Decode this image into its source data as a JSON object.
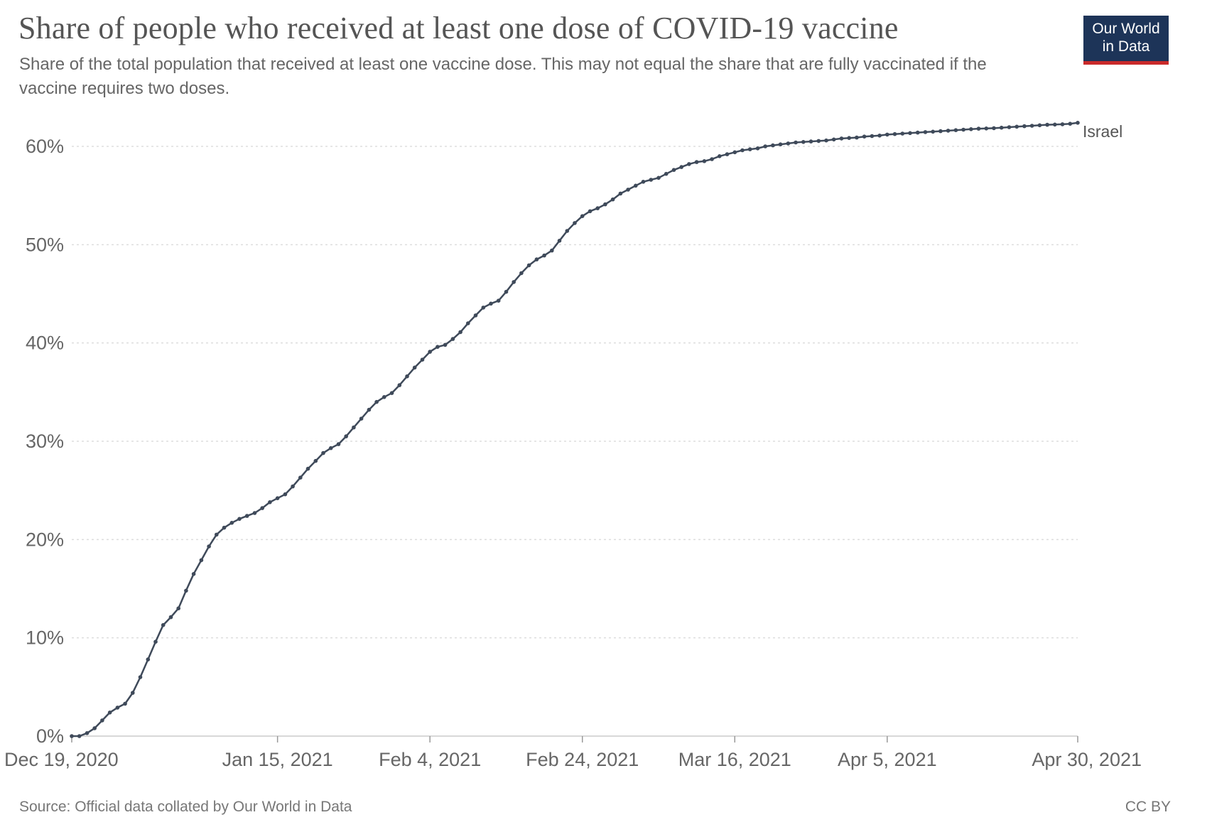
{
  "header": {
    "title": "Share of people who received at least one dose of COVID-19 vaccine",
    "subtitle": "Share of the total population that received at least one vaccine dose. This may not equal the share that are fully vaccinated if the vaccine requires two doses."
  },
  "logo": {
    "line1": "Our World",
    "line2": "in Data"
  },
  "footer": {
    "source_prefix": "Source: ",
    "source_name": "Official data collated by Our World in Data",
    "license": "CC BY"
  },
  "colors": {
    "line": "#3f4a5a",
    "grid": "#dddddd",
    "logo_bg": "#1d3458",
    "logo_accent": "#c92a2a"
  },
  "chart_data": {
    "type": "line",
    "y_unit": "%",
    "ylim": [
      0,
      60
    ],
    "y_ticks": [
      0,
      10,
      20,
      30,
      40,
      50,
      60
    ],
    "y_tick_labels": [
      "0%",
      "10%",
      "20%",
      "30%",
      "40%",
      "50%",
      "60%"
    ],
    "x_range": [
      "2020-12-19",
      "2021-04-30"
    ],
    "x_ticks": [
      "2020-12-19",
      "2021-01-15",
      "2021-02-04",
      "2021-02-24",
      "2021-03-16",
      "2021-04-05",
      "2021-04-30"
    ],
    "x_tick_labels": [
      "Dec 19, 2020",
      "Jan 15, 2021",
      "Feb 4, 2021",
      "Feb 24, 2021",
      "Mar 16, 2021",
      "Apr 5, 2021",
      "Apr 30, 2021"
    ],
    "grid": "horizontal dotted",
    "legend": "end-of-line label",
    "series": [
      {
        "name": "Israel",
        "points": [
          [
            "2020-12-19",
            0.0
          ],
          [
            "2020-12-20",
            0.0
          ],
          [
            "2020-12-21",
            0.3
          ],
          [
            "2020-12-22",
            0.8
          ],
          [
            "2020-12-23",
            1.6
          ],
          [
            "2020-12-24",
            2.4
          ],
          [
            "2020-12-25",
            2.9
          ],
          [
            "2020-12-26",
            3.3
          ],
          [
            "2020-12-27",
            4.4
          ],
          [
            "2020-12-28",
            6.0
          ],
          [
            "2020-12-29",
            7.8
          ],
          [
            "2020-12-30",
            9.6
          ],
          [
            "2020-12-31",
            11.3
          ],
          [
            "2021-01-01",
            12.1
          ],
          [
            "2021-01-02",
            13.0
          ],
          [
            "2021-01-03",
            14.8
          ],
          [
            "2021-01-04",
            16.5
          ],
          [
            "2021-01-05",
            17.9
          ],
          [
            "2021-01-06",
            19.3
          ],
          [
            "2021-01-07",
            20.5
          ],
          [
            "2021-01-08",
            21.2
          ],
          [
            "2021-01-09",
            21.7
          ],
          [
            "2021-01-10",
            22.1
          ],
          [
            "2021-01-11",
            22.4
          ],
          [
            "2021-01-12",
            22.7
          ],
          [
            "2021-01-13",
            23.2
          ],
          [
            "2021-01-14",
            23.8
          ],
          [
            "2021-01-15",
            24.2
          ],
          [
            "2021-01-16",
            24.6
          ],
          [
            "2021-01-17",
            25.4
          ],
          [
            "2021-01-18",
            26.3
          ],
          [
            "2021-01-19",
            27.2
          ],
          [
            "2021-01-20",
            28.0
          ],
          [
            "2021-01-21",
            28.8
          ],
          [
            "2021-01-22",
            29.3
          ],
          [
            "2021-01-23",
            29.7
          ],
          [
            "2021-01-24",
            30.5
          ],
          [
            "2021-01-25",
            31.4
          ],
          [
            "2021-01-26",
            32.3
          ],
          [
            "2021-01-27",
            33.2
          ],
          [
            "2021-01-28",
            34.0
          ],
          [
            "2021-01-29",
            34.5
          ],
          [
            "2021-01-30",
            34.9
          ],
          [
            "2021-01-31",
            35.7
          ],
          [
            "2021-02-01",
            36.6
          ],
          [
            "2021-02-02",
            37.5
          ],
          [
            "2021-02-03",
            38.3
          ],
          [
            "2021-02-04",
            39.1
          ],
          [
            "2021-02-05",
            39.6
          ],
          [
            "2021-02-06",
            39.8
          ],
          [
            "2021-02-07",
            40.4
          ],
          [
            "2021-02-08",
            41.1
          ],
          [
            "2021-02-09",
            42.0
          ],
          [
            "2021-02-10",
            42.8
          ],
          [
            "2021-02-11",
            43.6
          ],
          [
            "2021-02-12",
            44.0
          ],
          [
            "2021-02-13",
            44.3
          ],
          [
            "2021-02-14",
            45.2
          ],
          [
            "2021-02-15",
            46.2
          ],
          [
            "2021-02-16",
            47.1
          ],
          [
            "2021-02-17",
            47.9
          ],
          [
            "2021-02-18",
            48.5
          ],
          [
            "2021-02-19",
            48.9
          ],
          [
            "2021-02-20",
            49.4
          ],
          [
            "2021-02-21",
            50.4
          ],
          [
            "2021-02-22",
            51.4
          ],
          [
            "2021-02-23",
            52.2
          ],
          [
            "2021-02-24",
            52.9
          ],
          [
            "2021-02-25",
            53.4
          ],
          [
            "2021-02-26",
            53.7
          ],
          [
            "2021-02-27",
            54.1
          ],
          [
            "2021-02-28",
            54.6
          ],
          [
            "2021-03-01",
            55.2
          ],
          [
            "2021-03-02",
            55.6
          ],
          [
            "2021-03-03",
            56.0
          ],
          [
            "2021-03-04",
            56.4
          ],
          [
            "2021-03-05",
            56.6
          ],
          [
            "2021-03-06",
            56.8
          ],
          [
            "2021-03-07",
            57.2
          ],
          [
            "2021-03-08",
            57.6
          ],
          [
            "2021-03-09",
            57.9
          ],
          [
            "2021-03-10",
            58.2
          ],
          [
            "2021-03-11",
            58.4
          ],
          [
            "2021-03-12",
            58.5
          ],
          [
            "2021-03-13",
            58.7
          ],
          [
            "2021-03-14",
            59.0
          ],
          [
            "2021-03-15",
            59.2
          ],
          [
            "2021-03-16",
            59.4
          ],
          [
            "2021-03-17",
            59.6
          ],
          [
            "2021-03-18",
            59.7
          ],
          [
            "2021-03-19",
            59.8
          ],
          [
            "2021-03-20",
            60.0
          ],
          [
            "2021-03-21",
            60.1
          ],
          [
            "2021-03-22",
            60.2
          ],
          [
            "2021-03-23",
            60.3
          ],
          [
            "2021-03-24",
            60.4
          ],
          [
            "2021-03-25",
            60.45
          ],
          [
            "2021-03-26",
            60.5
          ],
          [
            "2021-03-27",
            60.55
          ],
          [
            "2021-03-28",
            60.6
          ],
          [
            "2021-03-29",
            60.7
          ],
          [
            "2021-03-30",
            60.8
          ],
          [
            "2021-03-31",
            60.85
          ],
          [
            "2021-04-01",
            60.9
          ],
          [
            "2021-04-02",
            61.0
          ],
          [
            "2021-04-03",
            61.05
          ],
          [
            "2021-04-04",
            61.1
          ],
          [
            "2021-04-05",
            61.2
          ],
          [
            "2021-04-06",
            61.25
          ],
          [
            "2021-04-07",
            61.3
          ],
          [
            "2021-04-08",
            61.35
          ],
          [
            "2021-04-09",
            61.4
          ],
          [
            "2021-04-10",
            61.45
          ],
          [
            "2021-04-11",
            61.5
          ],
          [
            "2021-04-12",
            61.55
          ],
          [
            "2021-04-13",
            61.6
          ],
          [
            "2021-04-14",
            61.65
          ],
          [
            "2021-04-15",
            61.7
          ],
          [
            "2021-04-16",
            61.75
          ],
          [
            "2021-04-17",
            61.8
          ],
          [
            "2021-04-18",
            61.82
          ],
          [
            "2021-04-19",
            61.85
          ],
          [
            "2021-04-20",
            61.9
          ],
          [
            "2021-04-21",
            61.95
          ],
          [
            "2021-04-22",
            62.0
          ],
          [
            "2021-04-23",
            62.05
          ],
          [
            "2021-04-24",
            62.1
          ],
          [
            "2021-04-25",
            62.15
          ],
          [
            "2021-04-26",
            62.2
          ],
          [
            "2021-04-27",
            62.22
          ],
          [
            "2021-04-28",
            62.25
          ],
          [
            "2021-04-29",
            62.3
          ],
          [
            "2021-04-30",
            62.4
          ]
        ]
      }
    ]
  }
}
